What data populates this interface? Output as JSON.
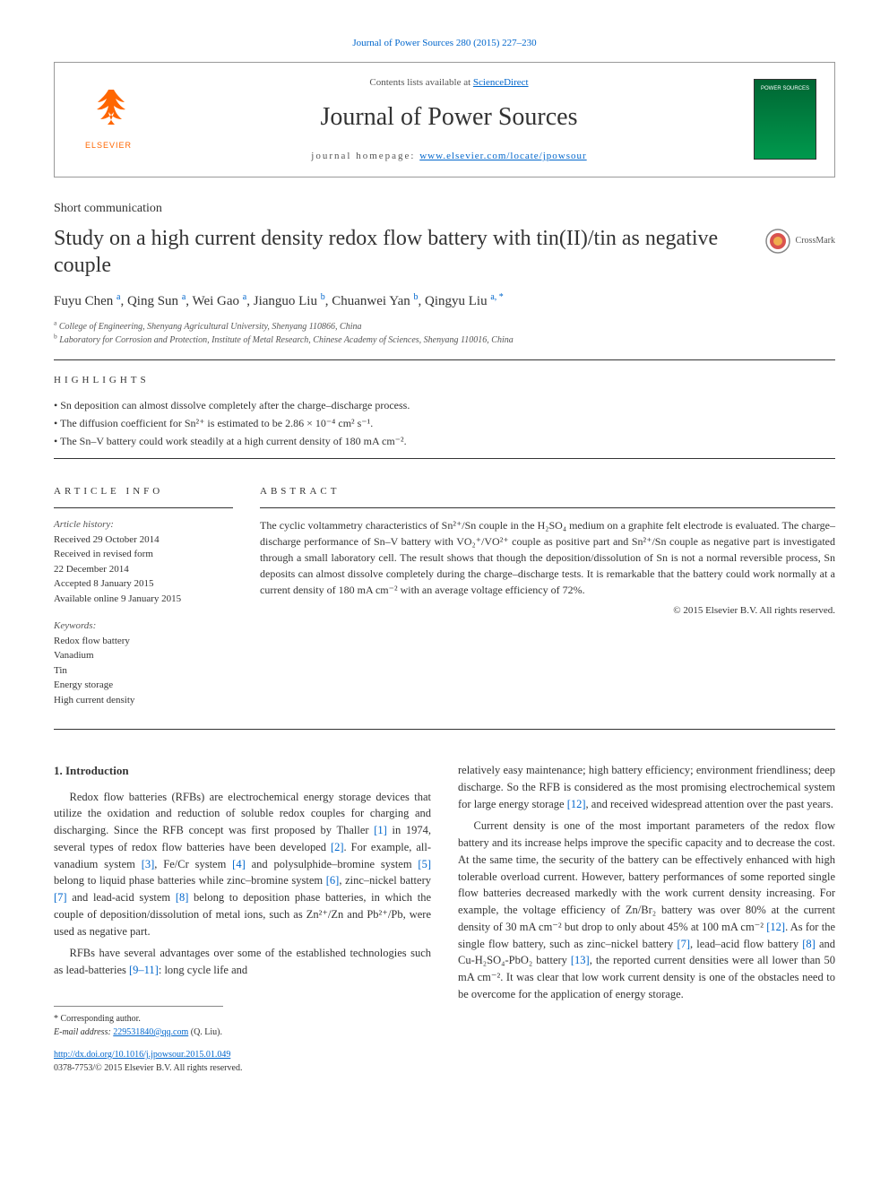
{
  "header_link": "Journal of Power Sources 280 (2015) 227–230",
  "banner": {
    "contents_prefix": "Contents lists available at ",
    "contents_link": "ScienceDirect",
    "journal_name": "Journal of Power Sources",
    "homepage_prefix": "journal homepage: ",
    "homepage_link": "www.elsevier.com/locate/jpowsour",
    "elsevier": "ELSEVIER",
    "cover_label": "POWER SOURCES"
  },
  "article_type": "Short communication",
  "title": "Study on a high current density redox flow battery with tin(II)/tin as negative couple",
  "crossmark": "CrossMark",
  "authors_html": "Fuyu Chen <sup>a</sup>, Qing Sun <sup>a</sup>, Wei Gao <sup>a</sup>, Jianguo Liu <sup>b</sup>, Chuanwei Yan <sup>b</sup>, Qingyu Liu <sup>a, *</sup>",
  "affiliations": {
    "a": "College of Engineering, Shenyang Agricultural University, Shenyang 110866, China",
    "b": "Laboratory for Corrosion and Protection, Institute of Metal Research, Chinese Academy of Sciences, Shenyang 110016, China"
  },
  "highlights_heading": "HIGHLIGHTS",
  "highlights": [
    "Sn deposition can almost dissolve completely after the charge–discharge process.",
    "The diffusion coefficient for Sn²⁺ is estimated to be 2.86 × 10⁻⁴ cm² s⁻¹.",
    "The Sn–V battery could work steadily at a high current density of 180 mA cm⁻²."
  ],
  "info_heading": "ARTICLE INFO",
  "abstract_heading": "ABSTRACT",
  "history_label": "Article history:",
  "history": [
    "Received 29 October 2014",
    "Received in revised form",
    "22 December 2014",
    "Accepted 8 January 2015",
    "Available online 9 January 2015"
  ],
  "keywords_label": "Keywords:",
  "keywords": [
    "Redox flow battery",
    "Vanadium",
    "Tin",
    "Energy storage",
    "High current density"
  ],
  "abstract": "The cyclic voltammetry characteristics of Sn²⁺/Sn couple in the H₂SO₄ medium on a graphite felt electrode is evaluated. The charge–discharge performance of Sn–V battery with VO₂⁺/VO²⁺ couple as positive part and Sn²⁺/Sn couple as negative part is investigated through a small laboratory cell. The result shows that though the deposition/dissolution of Sn is not a normal reversible process, Sn deposits can almost dissolve completely during the charge–discharge tests. It is remarkable that the battery could work normally at a current density of 180 mA cm⁻² with an average voltage efficiency of 72%.",
  "copyright": "© 2015 Elsevier B.V. All rights reserved.",
  "intro_heading": "1. Introduction",
  "para1a": "Redox flow batteries (RFBs) are electrochemical energy storage devices that utilize the oxidation and reduction of soluble redox couples for charging and discharging. Since the RFB concept was first proposed by Thaller ",
  "para1b": " in 1974, several types of redox flow batteries have been developed ",
  "para1c": ". For example, all-vanadium system ",
  "para1d": ", Fe/Cr system ",
  "para1e": " and polysulphide–bromine system ",
  "para1f": " belong to liquid phase batteries while zinc–bromine system ",
  "para1g": ", zinc–nickel battery ",
  "para1h": " and lead-acid system ",
  "para1i": " belong to deposition phase batteries, in which the couple of deposition/dissolution of metal ions, such as Zn²⁺/Zn and Pb²⁺/Pb, were used as negative part.",
  "para2a": "RFBs have several advantages over some of the established technologies such as lead-batteries ",
  "para2b": ": long cycle life and",
  "para3a": "relatively easy maintenance; high battery efficiency; environment friendliness; deep discharge. So the RFB is considered as the most promising electrochemical system for large energy storage ",
  "para3b": ", and received widespread attention over the past years.",
  "para4a": "Current density is one of the most important parameters of the redox flow battery and its increase helps improve the specific capacity and to decrease the cost. At the same time, the security of the battery can be effectively enhanced with high tolerable overload current. However, battery performances of some reported single flow batteries decreased markedly with the work current density increasing. For example, the voltage efficiency of Zn/Br₂ battery was over 80% at the current density of 30 mA cm⁻² but drop to only about 45% at 100 mA cm⁻² ",
  "para4b": ". As for the single flow battery, such as zinc–nickel battery ",
  "para4c": ", lead–acid flow battery ",
  "para4d": " and Cu-H₂SO₄-PbO₂ battery ",
  "para4e": ", the reported current densities were all lower than 50 mA cm⁻². It was clear that low work current density is one of the obstacles need to be overcome for the application of energy storage.",
  "refs": {
    "r1": "[1]",
    "r2": "[2]",
    "r3": "[3]",
    "r4": "[4]",
    "r5": "[5]",
    "r6": "[6]",
    "r7": "[7]",
    "r8": "[8]",
    "r9_11": "[9–11]",
    "r12": "[12]",
    "r13": "[13]"
  },
  "corresponding": "* Corresponding author.",
  "email_label": "E-mail address: ",
  "email": "229531840@qq.com",
  "email_suffix": " (Q. Liu).",
  "doi": "http://dx.doi.org/10.1016/j.jpowsour.2015.01.049",
  "issn_line": "0378-7753/© 2015 Elsevier B.V. All rights reserved.",
  "colors": {
    "link": "#0066cc",
    "orange": "#ff6600",
    "cover": "#00803b"
  }
}
